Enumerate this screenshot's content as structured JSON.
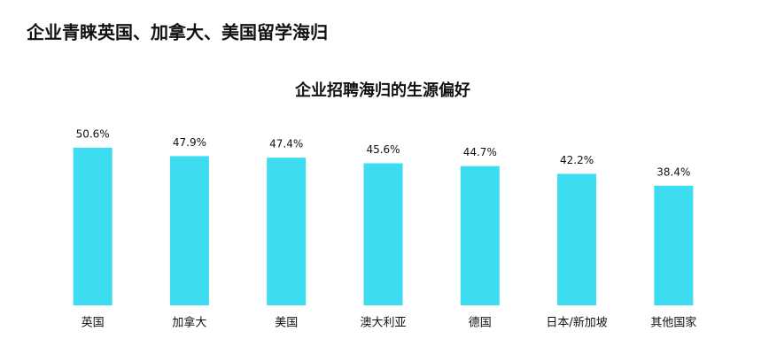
{
  "header": {
    "title": "企业青睐英国、加拿大、美国留学海归"
  },
  "chart_data": {
    "type": "bar",
    "title": "企业招聘海归的生源偏好",
    "categories": [
      "英国",
      "加拿大",
      "美国",
      "澳大利亚",
      "德国",
      "日本/新加坡",
      "其他国家"
    ],
    "values": [
      50.6,
      47.9,
      47.4,
      45.6,
      44.7,
      42.2,
      38.4
    ],
    "value_labels": [
      "50.6%",
      "47.9%",
      "47.4%",
      "45.6%",
      "44.7%",
      "42.2%",
      "38.4%"
    ],
    "color": "#3ddcf0"
  }
}
